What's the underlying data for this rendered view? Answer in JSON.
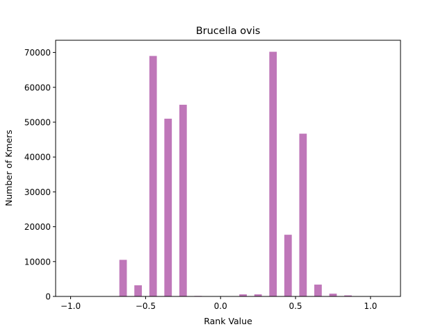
{
  "chart_data": {
    "type": "bar",
    "title": "Brucella ovis",
    "xlabel": "Rank Value",
    "ylabel": "Number of Kmers",
    "xlim": [
      -1.1,
      1.2
    ],
    "ylim": [
      0,
      73500
    ],
    "bar_color": "#bf77b9",
    "bar_width": 0.05,
    "grid": false,
    "x_ticks": [
      -1.0,
      -0.5,
      0.0,
      0.5,
      1.0
    ],
    "x_tick_labels": [
      "−1.0",
      "−0.5",
      "0.0",
      "0.5",
      "1.0"
    ],
    "y_ticks": [
      0,
      10000,
      20000,
      30000,
      40000,
      50000,
      60000,
      70000
    ],
    "y_tick_labels": [
      "0",
      "10000",
      "20000",
      "30000",
      "40000",
      "50000",
      "60000",
      "70000"
    ],
    "x": [
      -0.65,
      -0.55,
      -0.45,
      -0.35,
      -0.25,
      -0.15,
      0.15,
      0.25,
      0.35,
      0.45,
      0.55,
      0.65,
      0.75,
      0.85
    ],
    "values": [
      10500,
      3200,
      69000,
      51000,
      55000,
      150,
      600,
      600,
      70200,
      17700,
      46700,
      3400,
      800,
      300
    ]
  }
}
